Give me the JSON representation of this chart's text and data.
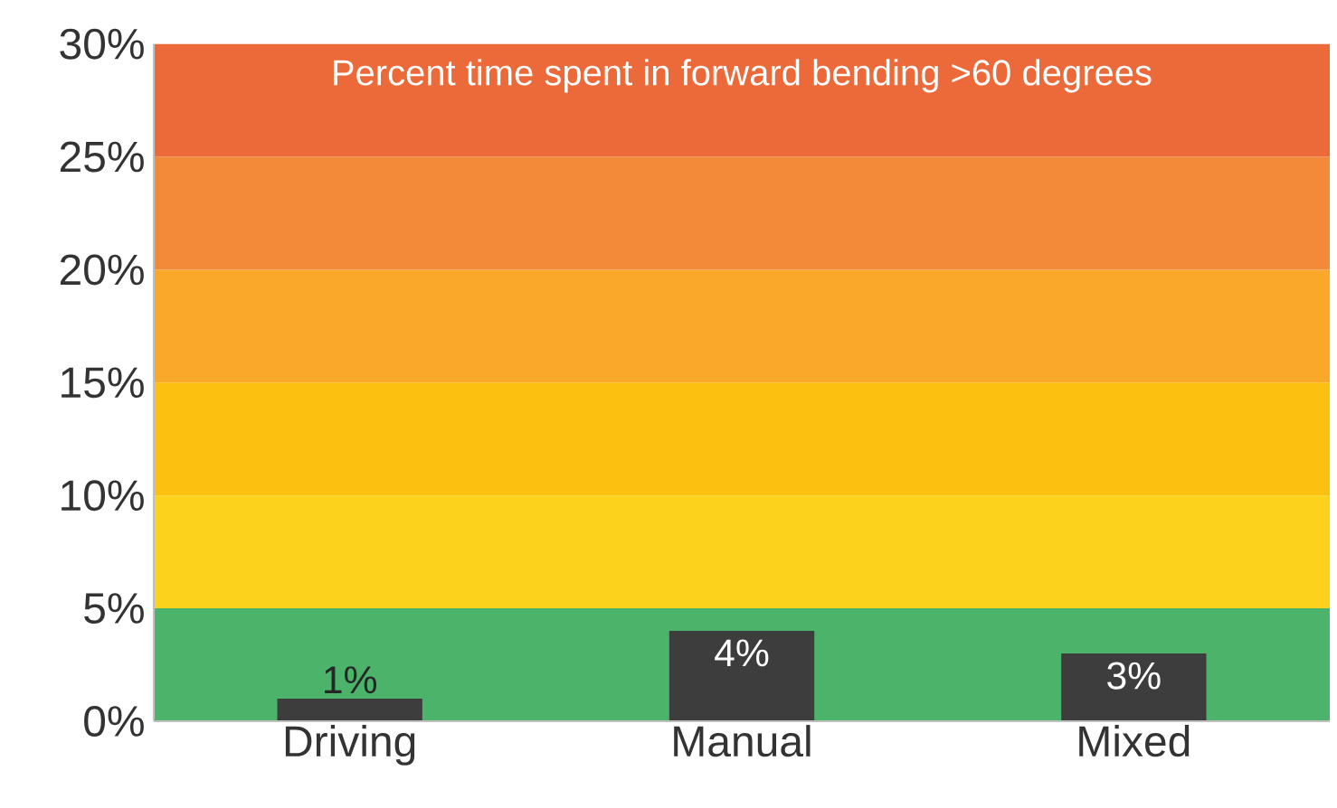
{
  "chart_data": {
    "type": "bar",
    "title": "Percent time spent in forward bending >60 degrees",
    "categories": [
      "Driving",
      "Manual",
      "Mixed"
    ],
    "values": [
      1,
      4,
      3
    ],
    "color": "#3d3d3d",
    "value_labels": [
      "1%",
      "4%",
      "3%"
    ],
    "ylim": [
      0,
      30
    ],
    "yticks": [
      {
        "value": 0,
        "label": "0%"
      },
      {
        "value": 5,
        "label": "5%"
      },
      {
        "value": 10,
        "label": "10%"
      },
      {
        "value": 15,
        "label": "15%"
      },
      {
        "value": 20,
        "label": "20%"
      },
      {
        "value": 25,
        "label": "25%"
      },
      {
        "value": 30,
        "label": "30%"
      }
    ],
    "bands": [
      {
        "axis": "y",
        "from": 0,
        "to": 5,
        "color": "#4cb36b"
      },
      {
        "axis": "y",
        "from": 5,
        "to": 10,
        "color": "#fcd21c"
      },
      {
        "axis": "y",
        "from": 10,
        "to": 15,
        "color": "#fcc010"
      },
      {
        "axis": "y",
        "from": 15,
        "to": 20,
        "color": "#f9a82a"
      },
      {
        "axis": "y",
        "from": 20,
        "to": 25,
        "color": "#f28a3a"
      },
      {
        "axis": "y",
        "from": 25,
        "to": 30,
        "color": "#ec6a3a"
      }
    ],
    "grid": false
  }
}
